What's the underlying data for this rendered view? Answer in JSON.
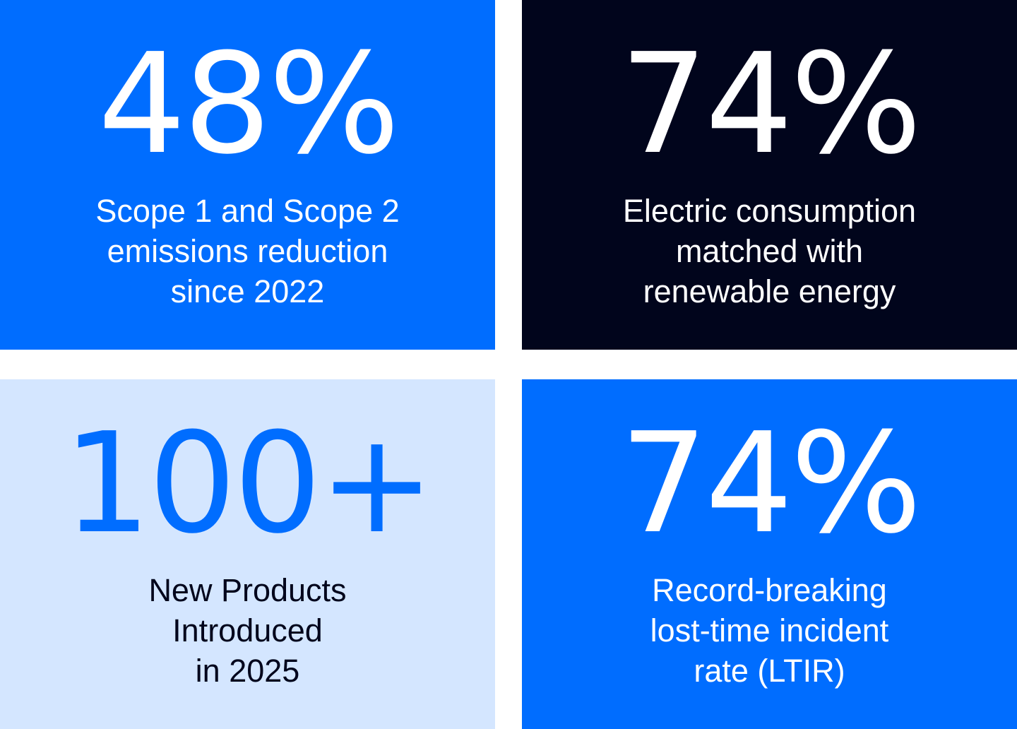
{
  "tiles": [
    {
      "value": "48%",
      "lines": [
        "Scope 1 and Scope 2",
        "emissions reduction",
        "since 2022"
      ],
      "bg": "#006DFF",
      "fg": "#FFFFFF"
    },
    {
      "value": "74%",
      "lines": [
        "Electric consumption",
        "matched with",
        "renewable energy"
      ],
      "bg": "#01051C",
      "fg": "#FFFFFF"
    },
    {
      "value": "100+",
      "lines": [
        "New Products",
        "Introduced",
        "in 2025"
      ],
      "bg": "#D4E6FF",
      "fg": "#006DFF",
      "caption_fg": "#01051C"
    },
    {
      "value": "74%",
      "lines": [
        "Record-breaking",
        "lost-time incident",
        "rate (LTIR)"
      ],
      "bg": "#006DFF",
      "fg": "#FFFFFF"
    }
  ]
}
